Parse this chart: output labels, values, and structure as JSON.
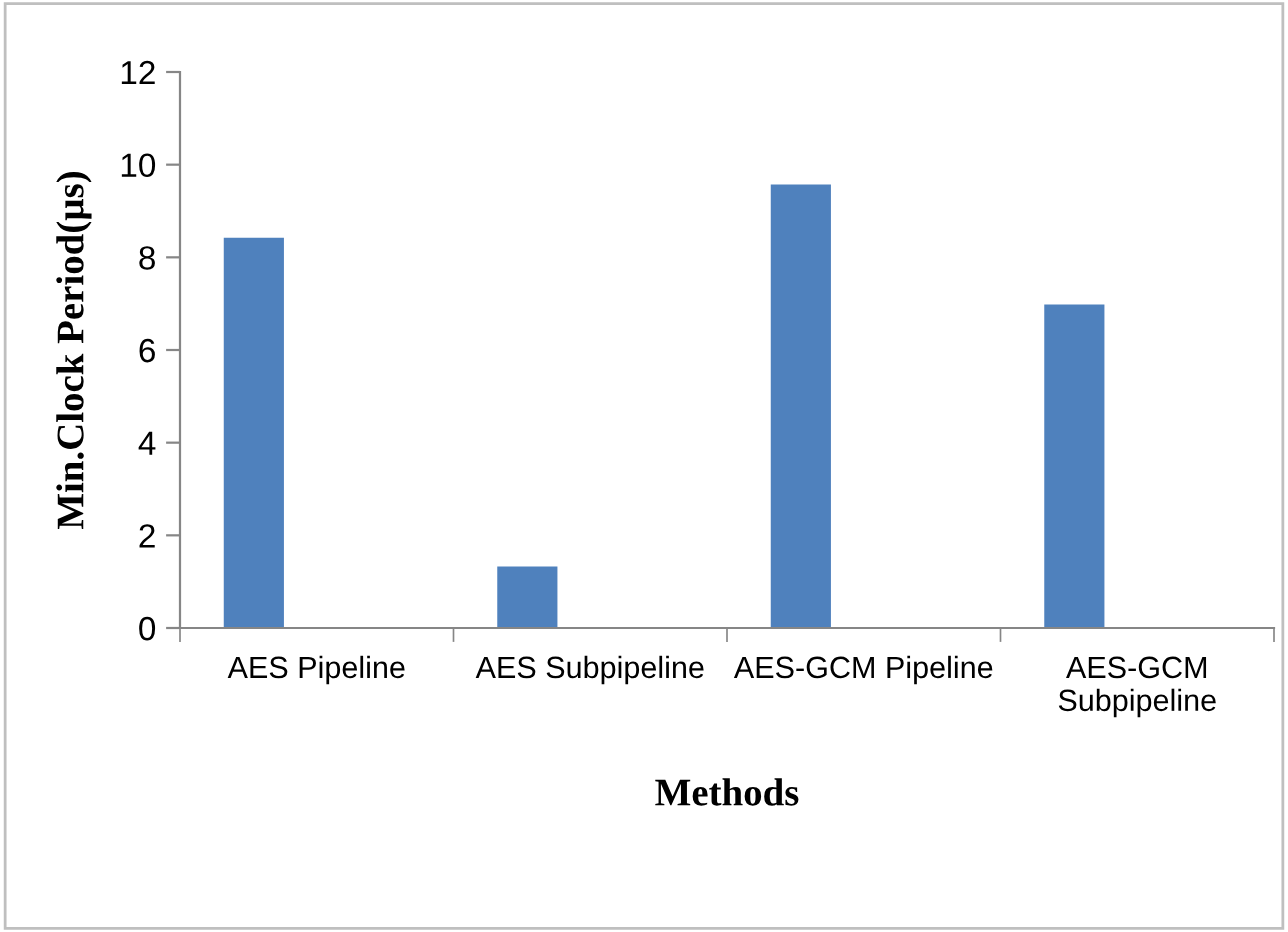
{
  "chart_data": {
    "type": "bar",
    "xlabel": "Methods",
    "ylabel": "Min.Clock Period(µs)",
    "categories": [
      "AES Pipeline",
      "AES Subpipeline",
      "AES-GCM Pipeline",
      "AES-GCM\nSubpipeline"
    ],
    "values": [
      8.42,
      1.33,
      9.57,
      6.98
    ],
    "color": "#4f81bd",
    "ylim": [
      0,
      12
    ],
    "yticks": [
      0,
      2,
      4,
      6,
      8,
      10,
      12
    ],
    "grid": false,
    "legend": false
  }
}
